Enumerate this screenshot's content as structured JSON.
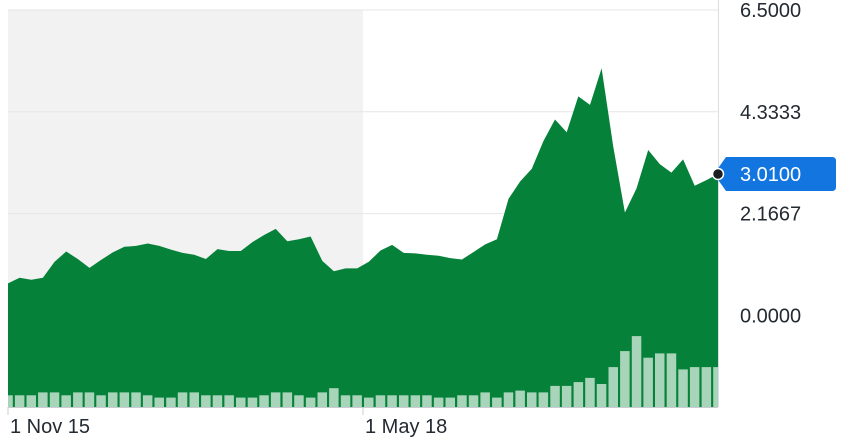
{
  "chart_data": {
    "type": "area",
    "x_tick_labels": [
      "1 Nov 15",
      "1 May 18"
    ],
    "y_tick_labels": [
      "6.5000",
      "4.3333",
      "2.1667",
      "0.0000"
    ],
    "y_ticks": [
      6.5,
      4.3333,
      2.1667,
      0.0
    ],
    "ylim": [
      -1.95,
      6.5
    ],
    "grid": true,
    "current_value_label": "3.0100",
    "colors": {
      "area": "#06813a",
      "volume": "#a8d5b9",
      "highlight_bg": "#f2f2f2",
      "price_tag": "#1275e0",
      "grid": "#e6e6e6"
    },
    "price": [
      0.68,
      0.8,
      0.76,
      0.8,
      1.14,
      1.36,
      1.2,
      1.01,
      1.18,
      1.34,
      1.46,
      1.48,
      1.53,
      1.48,
      1.4,
      1.33,
      1.29,
      1.2,
      1.41,
      1.37,
      1.37,
      1.56,
      1.71,
      1.84,
      1.58,
      1.62,
      1.68,
      1.16,
      0.94,
      1.0,
      1.0,
      1.14,
      1.38,
      1.5,
      1.33,
      1.32,
      1.29,
      1.27,
      1.22,
      1.19,
      1.35,
      1.51,
      1.62,
      2.48,
      2.85,
      3.12,
      3.71,
      4.17,
      3.9,
      4.66,
      4.48,
      5.26,
      3.6,
      2.19,
      2.7,
      3.52,
      3.22,
      3.04,
      3.32,
      2.76,
      2.88,
      3.01
    ],
    "volume": [
      -1.7,
      -1.7,
      -1.7,
      -1.64,
      -1.64,
      -1.7,
      -1.64,
      -1.64,
      -1.7,
      -1.64,
      -1.64,
      -1.64,
      -1.7,
      -1.75,
      -1.75,
      -1.64,
      -1.64,
      -1.7,
      -1.7,
      -1.7,
      -1.75,
      -1.75,
      -1.7,
      -1.64,
      -1.64,
      -1.7,
      -1.75,
      -1.64,
      -1.55,
      -1.7,
      -1.7,
      -1.75,
      -1.7,
      -1.7,
      -1.7,
      -1.7,
      -1.7,
      -1.75,
      -1.75,
      -1.7,
      -1.7,
      -1.64,
      -1.75,
      -1.64,
      -1.6,
      -1.64,
      -1.64,
      -1.5,
      -1.5,
      -1.42,
      -1.33,
      -1.46,
      -1.1,
      -0.76,
      -0.44,
      -0.9,
      -0.81,
      -0.81,
      -1.15,
      -1.1,
      -1.1,
      -1.1
    ]
  }
}
